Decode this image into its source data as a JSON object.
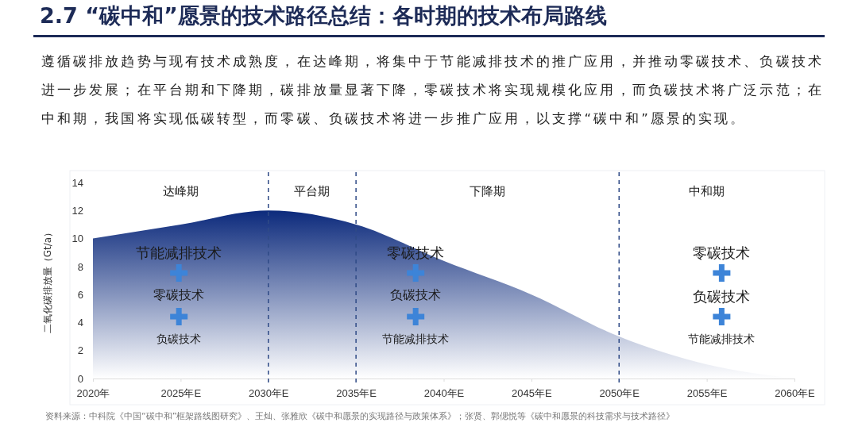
{
  "chart_data": {
    "type": "area",
    "title": "2.7 “碳中和”愿景的技术路径总结：各时期的技术布局路线",
    "subtitle": "遵循碳排放趋势与现有技术成熟度，在达峰期，将集中于节能减排技术的推广应用，并推动零碳技术、负碳技术进一步发展；在平台期和下降期，碳排放量显著下降，零碳技术将实现规模化应用，而负碳技术将广泛示范；在中和期，我国将实现低碳转型，而零碳、负碳技术将进一步推广应用，以支撑“碳中和”愿景的实现。",
    "ylabel": "二氧化碳排放量（Gt/a）",
    "categories": [
      "2020年",
      "2025年E",
      "2030年E",
      "2035年E",
      "2040年E",
      "2045年E",
      "2050年E",
      "2055年E",
      "2060年E"
    ],
    "series": [
      {
        "color": "#0c2a7c",
        "values": [
          10,
          11,
          12,
          11,
          8.4,
          6,
          3,
          1,
          0
        ]
      }
    ],
    "ylim": [
      0,
      14
    ],
    "yticks": [
      0,
      2,
      4,
      6,
      8,
      10,
      12,
      14
    ],
    "grid": false,
    "ref_lines": [
      {
        "axis": "x",
        "value": "2030年E",
        "line_style": "dashed",
        "color": "#2f4a86"
      },
      {
        "axis": "x",
        "value": "2035年E",
        "line_style": "dashed",
        "color": "#2f4a86"
      },
      {
        "axis": "x",
        "value": "2050年E",
        "line_style": "dashed",
        "color": "#2f4a86"
      }
    ],
    "annotations": [
      "达峰期",
      "平台期",
      "下降期",
      "中和期",
      "节能减排技术",
      "零碳技术",
      "负碳技术",
      "零碳技术",
      "负碳技术",
      "节能减排技术",
      "零碳技术",
      "负碳技术",
      "节能减排技术",
      "资料来源：中科院《中国“碳中和”框架路线图研究》、王灿、张雅欣《碳中和愿景的实现路径与政策体系》；张贤、郭偲悦等《碳中和愿景的科技需求与技术路径》"
    ]
  }
}
